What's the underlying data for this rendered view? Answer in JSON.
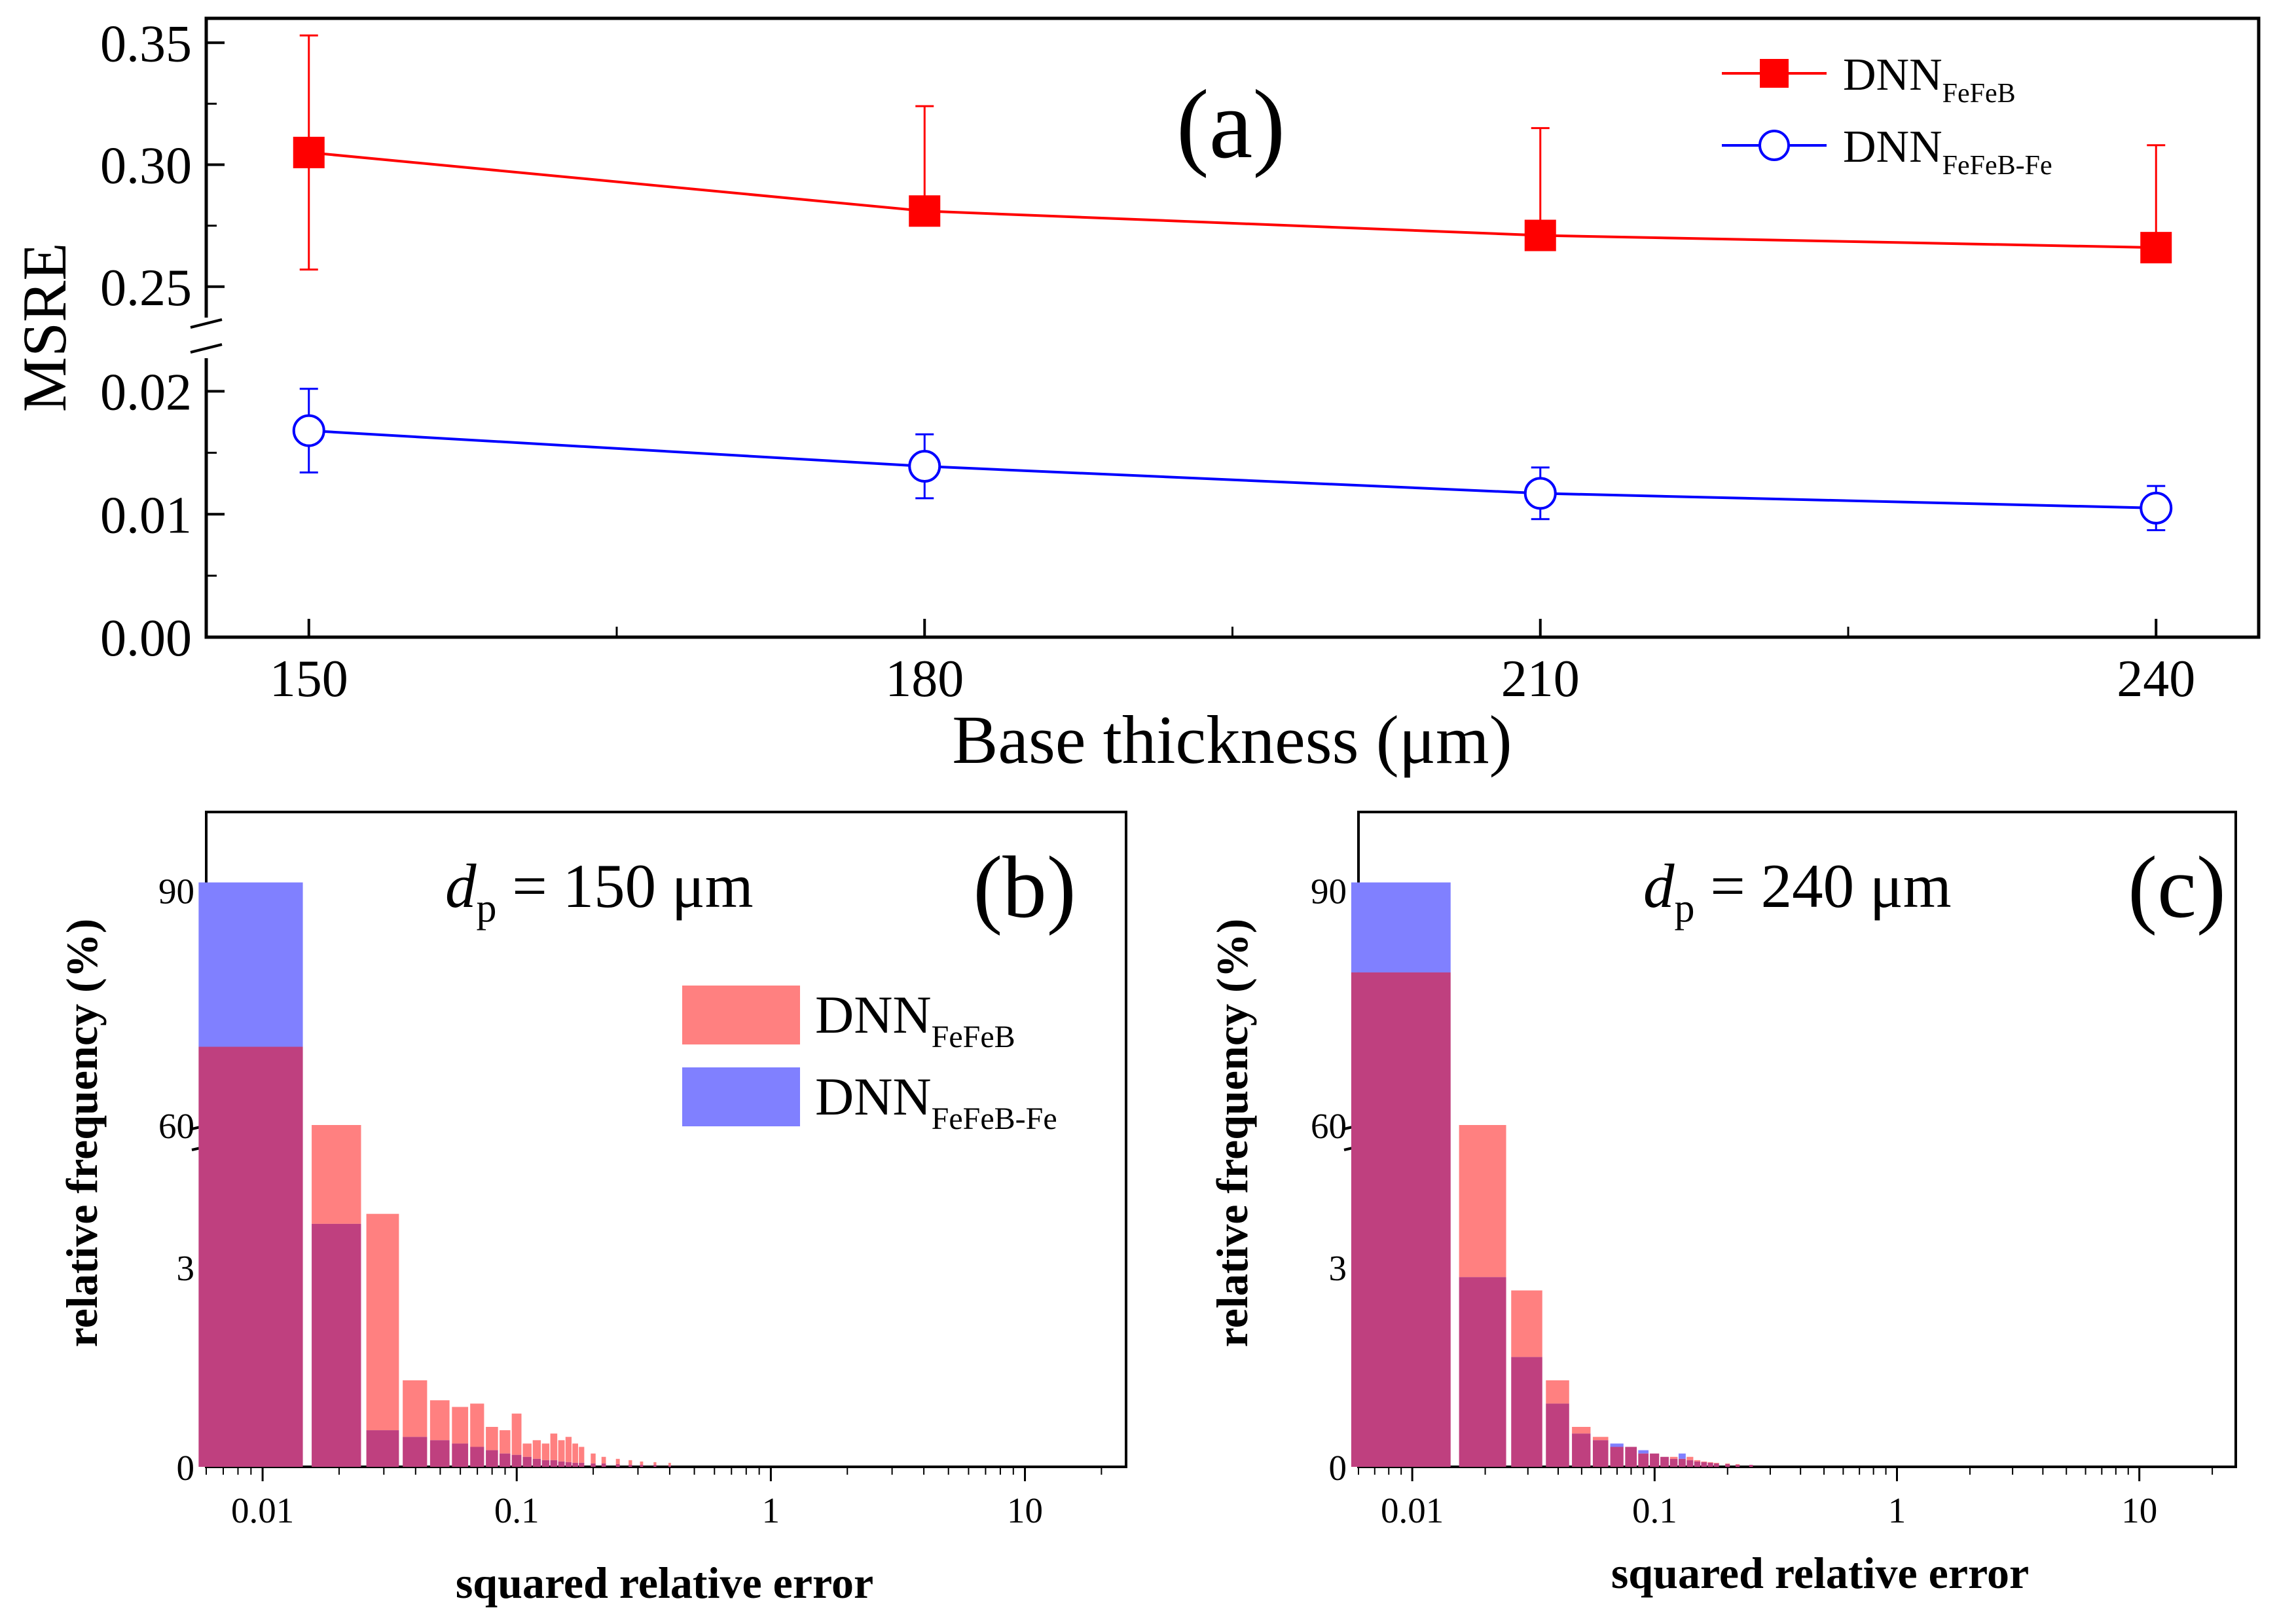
{
  "colors": {
    "red": "#ff0000",
    "blue": "#0000ff",
    "red_bar": "#ff8080",
    "blue_bar": "#8080ff",
    "overlap_bar": "#bf407f"
  },
  "chart_data": [
    {
      "panel": "a",
      "type": "line",
      "panel_label": "(a)",
      "xlabel": "Base thickness (μm)",
      "ylabel": "MSRE",
      "x": [
        150,
        180,
        210,
        240
      ],
      "xticks": [
        "150",
        "180",
        "210",
        "240"
      ],
      "xlim": [
        145,
        245
      ],
      "y_axis_break": true,
      "ylim_lower": [
        0.0,
        0.02
      ],
      "ylim_upper": [
        0.24,
        0.36
      ],
      "yticks": [
        "0.00",
        "0.01",
        "0.02",
        "0.25",
        "0.30",
        "0.35"
      ],
      "grid": false,
      "legend_position": "top-right",
      "series": [
        {
          "name_main": "DNN",
          "name_sub": "FeFeB",
          "marker": "filled-square",
          "color": "#ff0000",
          "values": [
            0.305,
            0.281,
            0.271,
            0.266
          ],
          "error_upper": [
            0.048,
            0.043,
            0.044,
            0.042
          ],
          "error_lower": [
            0.048,
            0.0,
            0.0,
            0.0
          ]
        },
        {
          "name_main": "DNN",
          "name_sub": "FeFeB-Fe",
          "marker": "open-circle",
          "color": "#0000ff",
          "values": [
            0.0168,
            0.0139,
            0.0117,
            0.0105
          ],
          "error_upper": [
            0.0034,
            0.0026,
            0.0021,
            0.0018
          ],
          "error_lower": [
            0.0034,
            0.0026,
            0.0021,
            0.0018
          ]
        }
      ]
    },
    {
      "panel": "b",
      "type": "bar",
      "panel_label": "(b)",
      "annotation_var": "d",
      "annotation_sub": "p",
      "annotation_rest": " = 150 μm",
      "xlabel": "squared relative error",
      "ylabel": "relative frequency (%)",
      "x_scale": "log",
      "xticks": [
        "0.01",
        "0.1",
        "1",
        "10"
      ],
      "xlim": [
        0.006,
        25
      ],
      "y_axis_break": true,
      "ylim_lower": [
        0,
        4.8
      ],
      "ylim_upper": [
        60,
        100
      ],
      "yticks": [
        "0",
        "3",
        "60",
        "90"
      ],
      "legend_position": "center-right",
      "bin_width": 0.01,
      "bin_centers": [
        0.01,
        0.02,
        0.03,
        0.04,
        0.05,
        0.06,
        0.07,
        0.08,
        0.09,
        0.1,
        0.11,
        0.12,
        0.13,
        0.14,
        0.15,
        0.16,
        0.17,
        0.18,
        0.2,
        0.22,
        0.25,
        0.28,
        0.31,
        0.35,
        0.4
      ],
      "series": [
        {
          "name_main": "DNN",
          "name_sub": "FeFeB",
          "color": "#ff8080",
          "values": [
            70.0,
            56.0,
            3.8,
            1.3,
            1.0,
            0.9,
            0.95,
            0.6,
            0.55,
            0.8,
            0.35,
            0.4,
            0.35,
            0.5,
            0.4,
            0.45,
            0.35,
            0.3,
            0.2,
            0.15,
            0.12,
            0.1,
            0.08,
            0.07,
            0.06
          ]
        },
        {
          "name_main": "DNN",
          "name_sub": "FeFeB-Fe",
          "color": "#8080ff",
          "values": [
            91.0,
            3.65,
            0.55,
            0.45,
            0.4,
            0.35,
            0.3,
            0.25,
            0.2,
            0.18,
            0.15,
            0.12,
            0.1,
            0.1,
            0.08,
            0.07,
            0.06,
            0.06,
            0.05,
            0.05,
            0.04,
            0.03,
            0.03,
            0.03,
            0.02
          ]
        }
      ]
    },
    {
      "panel": "c",
      "type": "bar",
      "panel_label": "(c)",
      "annotation_var": "d",
      "annotation_sub": "p",
      "annotation_rest": " = 240 μm",
      "xlabel": "squared relative error",
      "ylabel": "relative frequency (%)",
      "x_scale": "log",
      "xticks": [
        "0.01",
        "0.1",
        "1",
        "10"
      ],
      "xlim": [
        0.006,
        25
      ],
      "y_axis_break": true,
      "ylim_lower": [
        0,
        4.8
      ],
      "ylim_upper": [
        60,
        100
      ],
      "yticks": [
        "0",
        "3",
        "60",
        "90"
      ],
      "bin_width": 0.01,
      "bin_centers": [
        0.01,
        0.02,
        0.03,
        0.04,
        0.05,
        0.06,
        0.07,
        0.08,
        0.09,
        0.1,
        0.11,
        0.12,
        0.13,
        0.14,
        0.15,
        0.16,
        0.17,
        0.18,
        0.2,
        0.22,
        0.25
      ],
      "series": [
        {
          "name_main": "DNN",
          "name_sub": "FeFeB",
          "color": "#ff8080",
          "values": [
            79.5,
            56.0,
            2.65,
            1.3,
            0.6,
            0.45,
            0.3,
            0.3,
            0.2,
            0.2,
            0.15,
            0.15,
            0.12,
            0.15,
            0.1,
            0.08,
            0.07,
            0.06,
            0.05,
            0.04,
            0.03
          ]
        },
        {
          "name_main": "DNN",
          "name_sub": "FeFeB-Fe",
          "color": "#8080ff",
          "values": [
            91.0,
            2.85,
            1.65,
            0.95,
            0.5,
            0.4,
            0.35,
            0.3,
            0.25,
            0.2,
            0.15,
            0.12,
            0.2,
            0.1,
            0.08,
            0.07,
            0.06,
            0.05,
            0.04,
            0.03,
            0.03
          ]
        }
      ]
    }
  ]
}
